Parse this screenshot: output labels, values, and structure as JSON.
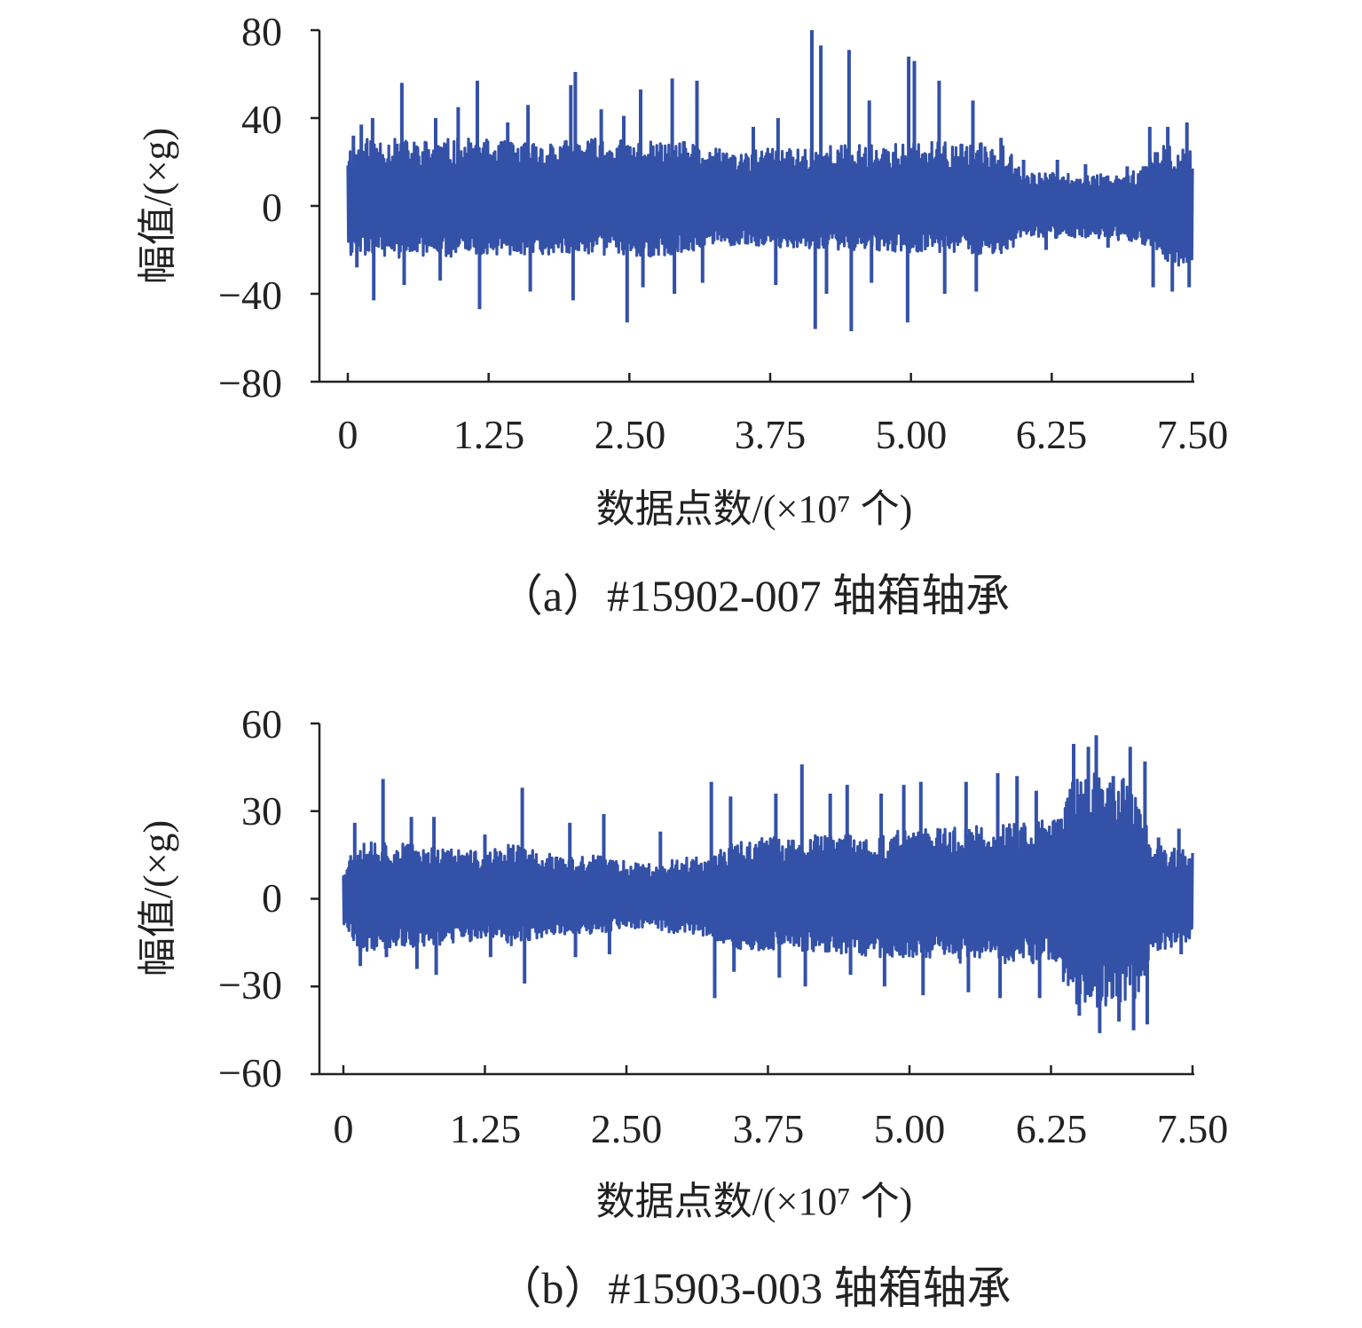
{
  "series_color": "#3451A8",
  "axis_color": "#222222",
  "chart_data": [
    {
      "type": "line",
      "caption": "（a）#15902-007 轴箱轴承",
      "xlabel": "数据点数/(×10⁷ 个)",
      "ylabel": "幅值/(×g)",
      "xlim": [
        0,
        7.5
      ],
      "ylim": [
        -80,
        80
      ],
      "xticks": [
        "0",
        "1.25",
        "2.50",
        "3.75",
        "5.00",
        "6.25",
        "7.50"
      ],
      "yticks": [
        "80",
        "40",
        "0",
        "−40",
        "−80"
      ],
      "grid": false,
      "legend": "none",
      "series": [
        {
          "envelope": {
            "x": [
              0.0,
              0.25,
              0.5,
              0.75,
              1.0,
              1.25,
              1.5,
              1.75,
              2.0,
              2.25,
              2.5,
              2.75,
              3.0,
              3.25,
              3.5,
              3.75,
              4.0,
              4.25,
              4.5,
              4.75,
              5.0,
              5.25,
              5.5,
              5.75,
              5.85,
              6.0,
              6.25,
              6.5,
              6.75,
              7.0,
              7.25,
              7.5
            ],
            "upper": [
              28,
              32,
              30,
              30,
              31,
              30,
              29,
              30,
              30,
              31,
              30,
              29,
              29,
              26,
              25,
              26,
              27,
              28,
              28,
              28,
              29,
              29,
              28,
              29,
              29,
              15,
              15,
              14,
              15,
              16,
              28,
              26
            ],
            "lower": [
              -24,
              -22,
              -24,
              -23,
              -23,
              -22,
              -22,
              -22,
              -22,
              -22,
              -23,
              -23,
              -21,
              -18,
              -18,
              -19,
              -20,
              -20,
              -20,
              -21,
              -21,
              -21,
              -22,
              -22,
              -22,
              -13,
              -15,
              -14,
              -15,
              -16,
              -26,
              -28
            ]
          },
          "spikes": [
            {
              "x": 0.05,
              "y": 32
            },
            {
              "x": 0.08,
              "y": -28
            },
            {
              "x": 0.12,
              "y": 37
            },
            {
              "x": 0.22,
              "y": 40
            },
            {
              "x": 0.23,
              "y": -43
            },
            {
              "x": 0.48,
              "y": 56
            },
            {
              "x": 0.5,
              "y": -36
            },
            {
              "x": 0.78,
              "y": 40
            },
            {
              "x": 0.82,
              "y": -34
            },
            {
              "x": 0.98,
              "y": 45
            },
            {
              "x": 1.15,
              "y": 57
            },
            {
              "x": 1.17,
              "y": -47
            },
            {
              "x": 1.42,
              "y": 38
            },
            {
              "x": 1.6,
              "y": 46
            },
            {
              "x": 1.62,
              "y": -39
            },
            {
              "x": 1.98,
              "y": 55
            },
            {
              "x": 2.02,
              "y": 61
            },
            {
              "x": 2.0,
              "y": -43
            },
            {
              "x": 2.25,
              "y": 44
            },
            {
              "x": 2.45,
              "y": 41
            },
            {
              "x": 2.48,
              "y": -53
            },
            {
              "x": 2.6,
              "y": 53
            },
            {
              "x": 2.62,
              "y": -37
            },
            {
              "x": 2.88,
              "y": 58
            },
            {
              "x": 2.9,
              "y": -40
            },
            {
              "x": 3.1,
              "y": 57
            },
            {
              "x": 3.15,
              "y": -35
            },
            {
              "x": 3.6,
              "y": 36
            },
            {
              "x": 3.82,
              "y": 40
            },
            {
              "x": 3.8,
              "y": -36
            },
            {
              "x": 4.12,
              "y": 80
            },
            {
              "x": 4.15,
              "y": -56
            },
            {
              "x": 4.2,
              "y": 73
            },
            {
              "x": 4.25,
              "y": -40
            },
            {
              "x": 4.45,
              "y": 71
            },
            {
              "x": 4.47,
              "y": -57
            },
            {
              "x": 4.63,
              "y": 48
            },
            {
              "x": 4.65,
              "y": -35
            },
            {
              "x": 4.98,
              "y": 68
            },
            {
              "x": 4.97,
              "y": -53
            },
            {
              "x": 5.03,
              "y": 66
            },
            {
              "x": 5.25,
              "y": 57
            },
            {
              "x": 5.3,
              "y": -40
            },
            {
              "x": 5.55,
              "y": 48
            },
            {
              "x": 5.58,
              "y": -39
            },
            {
              "x": 5.8,
              "y": 31
            },
            {
              "x": 6.0,
              "y": 21
            },
            {
              "x": 6.2,
              "y": -20
            },
            {
              "x": 6.3,
              "y": 21
            },
            {
              "x": 6.55,
              "y": 19
            },
            {
              "x": 6.75,
              "y": -19
            },
            {
              "x": 6.92,
              "y": 18
            },
            {
              "x": 7.12,
              "y": 36
            },
            {
              "x": 7.15,
              "y": -37
            },
            {
              "x": 7.28,
              "y": 36
            },
            {
              "x": 7.32,
              "y": -39
            },
            {
              "x": 7.45,
              "y": 38
            },
            {
              "x": 7.47,
              "y": -37
            }
          ]
        }
      ]
    },
    {
      "type": "line",
      "caption": "（b）#15903-003 轴箱轴承",
      "xlabel": "数据点数/(×10⁷ 个)",
      "ylabel": "幅值/(×g)",
      "xlim": [
        0,
        7.5
      ],
      "ylim": [
        -60,
        60
      ],
      "xticks": [
        "0",
        "1.25",
        "2.50",
        "3.75",
        "5.00",
        "6.25",
        "7.50"
      ],
      "yticks": [
        "60",
        "30",
        "0",
        "−30",
        "−60"
      ],
      "grid": false,
      "legend": "none",
      "series": [
        {
          "envelope": {
            "x": [
              0.0,
              0.15,
              0.4,
              0.75,
              1.0,
              1.25,
              1.5,
              1.75,
              2.0,
              2.25,
              2.5,
              2.75,
              3.0,
              3.25,
              3.5,
              3.75,
              4.0,
              4.25,
              4.5,
              4.75,
              5.0,
              5.25,
              5.5,
              5.75,
              6.0,
              6.25,
              6.4,
              6.6,
              6.8,
              7.0,
              7.15,
              7.3,
              7.45
            ],
            "upper": [
              12,
              22,
              20,
              18,
              17,
              16,
              19,
              16,
              14,
              15,
              13,
              12,
              14,
              15,
              20,
              21,
              21,
              22,
              22,
              22,
              24,
              24,
              25,
              26,
              26,
              27,
              40,
              43,
              42,
              40,
              18,
              18,
              17
            ],
            "lower": [
              -10,
              -18,
              -17,
              -16,
              -15,
              -14,
              -16,
              -13,
              -12,
              -12,
              -10,
              -11,
              -12,
              -13,
              -18,
              -18,
              -18,
              -19,
              -19,
              -20,
              -20,
              -21,
              -22,
              -22,
              -22,
              -22,
              -36,
              -38,
              -36,
              -35,
              -18,
              -17,
              -17
            ]
          },
          "spikes": [
            {
              "x": 0.1,
              "y": 26
            },
            {
              "x": 0.15,
              "y": -23
            },
            {
              "x": 0.35,
              "y": 41
            },
            {
              "x": 0.38,
              "y": -20
            },
            {
              "x": 0.6,
              "y": 28
            },
            {
              "x": 0.65,
              "y": -24
            },
            {
              "x": 0.8,
              "y": 28
            },
            {
              "x": 0.82,
              "y": -26
            },
            {
              "x": 1.25,
              "y": 22
            },
            {
              "x": 1.3,
              "y": -20
            },
            {
              "x": 1.58,
              "y": 38
            },
            {
              "x": 1.6,
              "y": -29
            },
            {
              "x": 2.0,
              "y": 26
            },
            {
              "x": 2.05,
              "y": -20
            },
            {
              "x": 2.3,
              "y": 29
            },
            {
              "x": 2.35,
              "y": -19
            },
            {
              "x": 2.8,
              "y": 23
            },
            {
              "x": 3.25,
              "y": 40
            },
            {
              "x": 3.28,
              "y": -34
            },
            {
              "x": 3.42,
              "y": 35
            },
            {
              "x": 3.45,
              "y": -25
            },
            {
              "x": 3.82,
              "y": 36
            },
            {
              "x": 3.85,
              "y": -27
            },
            {
              "x": 4.05,
              "y": 46
            },
            {
              "x": 4.08,
              "y": -30
            },
            {
              "x": 4.3,
              "y": 36
            },
            {
              "x": 4.45,
              "y": 39
            },
            {
              "x": 4.48,
              "y": -26
            },
            {
              "x": 4.75,
              "y": 36
            },
            {
              "x": 4.78,
              "y": -30
            },
            {
              "x": 4.95,
              "y": 39
            },
            {
              "x": 5.1,
              "y": 40
            },
            {
              "x": 5.12,
              "y": -33
            },
            {
              "x": 5.5,
              "y": 40
            },
            {
              "x": 5.52,
              "y": -32
            },
            {
              "x": 5.78,
              "y": 43
            },
            {
              "x": 5.8,
              "y": -34
            },
            {
              "x": 5.95,
              "y": 42
            },
            {
              "x": 6.12,
              "y": 37
            },
            {
              "x": 6.15,
              "y": -34
            },
            {
              "x": 6.45,
              "y": 53
            },
            {
              "x": 6.5,
              "y": -40
            },
            {
              "x": 6.58,
              "y": 52
            },
            {
              "x": 6.65,
              "y": 56
            },
            {
              "x": 6.68,
              "y": -46
            },
            {
              "x": 6.8,
              "y": 42
            },
            {
              "x": 6.85,
              "y": -42
            },
            {
              "x": 6.95,
              "y": 52
            },
            {
              "x": 6.98,
              "y": -45
            },
            {
              "x": 7.08,
              "y": 47
            },
            {
              "x": 7.1,
              "y": -43
            },
            {
              "x": 7.2,
              "y": 21
            },
            {
              "x": 7.38,
              "y": 24
            },
            {
              "x": 7.4,
              "y": -19
            }
          ]
        }
      ]
    }
  ]
}
